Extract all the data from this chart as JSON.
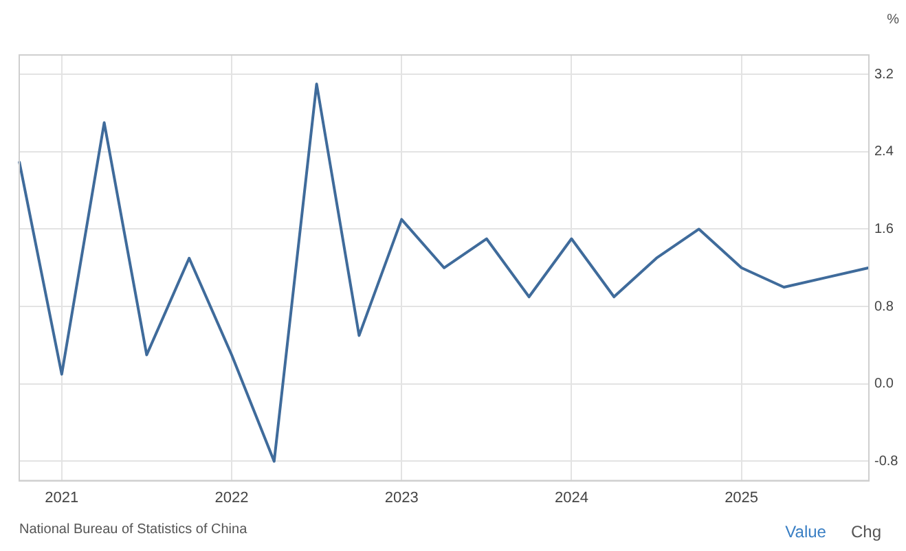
{
  "chart_data": {
    "type": "line",
    "ylabel": "%",
    "categories": [
      null,
      "2021",
      null,
      null,
      null,
      "2022",
      null,
      null,
      null,
      "2023",
      null,
      null,
      null,
      "2024",
      null,
      null,
      null,
      "2025",
      null,
      null,
      null
    ],
    "series": [
      {
        "color": "#3f6b9b",
        "values": [
          2.3,
          0.1,
          2.7,
          0.3,
          1.3,
          0.3,
          -0.8,
          3.1,
          0.5,
          1.7,
          1.2,
          1.5,
          0.9,
          1.5,
          0.9,
          1.3,
          1.6,
          1.2,
          1.0,
          1.1,
          1.2
        ]
      }
    ],
    "ylim": [
      -1.0,
      3.4
    ],
    "yticks": [
      {
        "value": -0.8,
        "label": "-0.8"
      },
      {
        "value": 0,
        "label": "0.0"
      },
      {
        "value": 0.8,
        "label": "0.8"
      },
      {
        "value": 1.6,
        "label": "1.6"
      },
      {
        "value": 2.4,
        "label": "2.4"
      },
      {
        "value": 3.2,
        "label": "3.2"
      }
    ],
    "grid": true,
    "legend": false,
    "marker": "none",
    "line_style": "solid",
    "annotations": [
      "National Bureau of Statistics of China",
      "Value",
      "Chg"
    ]
  }
}
